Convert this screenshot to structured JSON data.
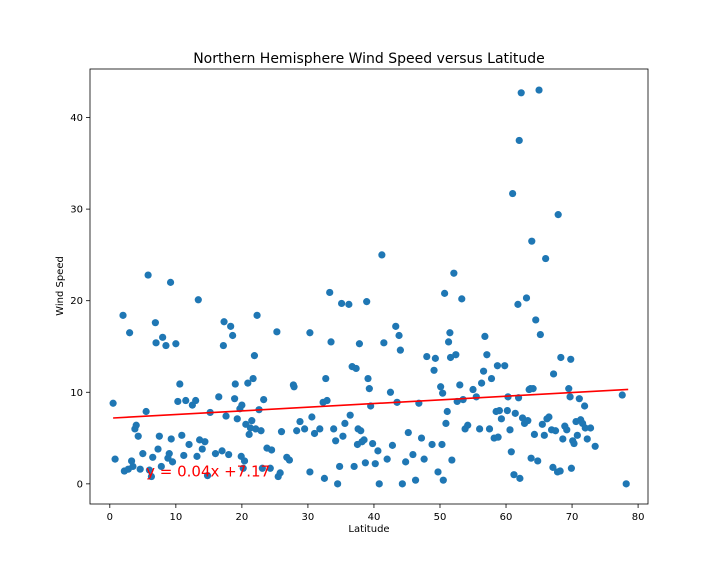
{
  "chart_data": {
    "type": "scatter",
    "title": "Northern Hemisphere Wind Speed versus Latitude",
    "xlabel": "Latitude",
    "ylabel": "Wind Speed",
    "xlim": [
      -3,
      81.5
    ],
    "ylim": [
      -2.2,
      45.3
    ],
    "xticks": [
      0,
      10,
      20,
      30,
      40,
      50,
      60,
      70,
      80
    ],
    "yticks": [
      0,
      10,
      20,
      30,
      40
    ],
    "grid": false,
    "point_color": "#1f77b4",
    "line_color": "#ff0000",
    "regression": {
      "slope": 0.04,
      "intercept": 7.17,
      "x_range": [
        0.5,
        78.5
      ]
    },
    "annotation": {
      "text": "y = 0.04x +7.17",
      "x": 5.5,
      "y": 1.0
    },
    "points": [
      [
        0.5,
        8.8
      ],
      [
        0.8,
        2.7
      ],
      [
        2.0,
        18.4
      ],
      [
        2.2,
        1.4
      ],
      [
        2.8,
        1.6
      ],
      [
        3.0,
        16.5
      ],
      [
        3.3,
        2.5
      ],
      [
        3.5,
        1.9
      ],
      [
        3.8,
        6.0
      ],
      [
        4.0,
        6.4
      ],
      [
        4.3,
        5.2
      ],
      [
        4.6,
        1.6
      ],
      [
        5.0,
        3.3
      ],
      [
        5.5,
        7.9
      ],
      [
        5.8,
        22.8
      ],
      [
        6.0,
        1.5
      ],
      [
        6.3,
        0.8
      ],
      [
        6.5,
        2.9
      ],
      [
        6.9,
        17.6
      ],
      [
        7.0,
        15.4
      ],
      [
        7.3,
        3.8
      ],
      [
        7.5,
        5.2
      ],
      [
        7.8,
        1.9
      ],
      [
        8.0,
        16.0
      ],
      [
        8.5,
        15.1
      ],
      [
        8.8,
        2.8
      ],
      [
        9.0,
        3.3
      ],
      [
        9.2,
        22.0
      ],
      [
        9.3,
        4.9
      ],
      [
        9.5,
        2.4
      ],
      [
        10.0,
        15.3
      ],
      [
        10.3,
        9.0
      ],
      [
        10.6,
        10.9
      ],
      [
        10.9,
        5.3
      ],
      [
        11.2,
        3.1
      ],
      [
        11.5,
        9.1
      ],
      [
        12.0,
        4.3
      ],
      [
        12.5,
        8.6
      ],
      [
        13.0,
        9.1
      ],
      [
        13.2,
        3.0
      ],
      [
        13.4,
        20.1
      ],
      [
        13.6,
        4.8
      ],
      [
        14.0,
        3.8
      ],
      [
        14.4,
        4.6
      ],
      [
        14.8,
        0.9
      ],
      [
        15.2,
        7.8
      ],
      [
        16.0,
        3.3
      ],
      [
        16.5,
        9.5
      ],
      [
        17.0,
        3.6
      ],
      [
        17.2,
        15.1
      ],
      [
        17.3,
        17.7
      ],
      [
        17.6,
        7.4
      ],
      [
        18.0,
        3.2
      ],
      [
        18.3,
        17.2
      ],
      [
        18.6,
        16.2
      ],
      [
        18.9,
        9.3
      ],
      [
        19.0,
        10.9
      ],
      [
        19.3,
        7.1
      ],
      [
        19.7,
        8.2
      ],
      [
        19.9,
        3.0
      ],
      [
        20.0,
        8.6
      ],
      [
        20.2,
        1.7
      ],
      [
        20.4,
        2.5
      ],
      [
        20.6,
        6.5
      ],
      [
        20.9,
        11.0
      ],
      [
        21.1,
        5.4
      ],
      [
        21.3,
        6.1
      ],
      [
        21.5,
        6.9
      ],
      [
        21.7,
        11.5
      ],
      [
        21.9,
        14.0
      ],
      [
        22.1,
        6.0
      ],
      [
        22.3,
        18.4
      ],
      [
        22.6,
        8.1
      ],
      [
        22.9,
        5.8
      ],
      [
        23.1,
        1.7
      ],
      [
        23.3,
        9.2
      ],
      [
        23.8,
        3.9
      ],
      [
        24.3,
        1.7
      ],
      [
        24.5,
        3.7
      ],
      [
        25.3,
        16.6
      ],
      [
        25.5,
        0.8
      ],
      [
        26.0,
        5.7
      ],
      [
        26.8,
        2.9
      ],
      [
        27.2,
        2.6
      ],
      [
        27.8,
        10.8
      ],
      [
        27.9,
        10.6
      ],
      [
        28.3,
        5.8
      ],
      [
        28.8,
        6.8
      ],
      [
        29.5,
        6.0
      ],
      [
        30.3,
        16.5
      ],
      [
        30.3,
        1.3
      ],
      [
        30.6,
        7.3
      ],
      [
        31.0,
        5.5
      ],
      [
        31.8,
        6.0
      ],
      [
        32.3,
        8.9
      ],
      [
        32.5,
        0.6
      ],
      [
        32.7,
        11.5
      ],
      [
        32.9,
        9.1
      ],
      [
        33.3,
        20.9
      ],
      [
        33.5,
        15.5
      ],
      [
        33.9,
        6.0
      ],
      [
        34.2,
        4.7
      ],
      [
        34.5,
        0.0
      ],
      [
        34.8,
        1.9
      ],
      [
        35.1,
        19.7
      ],
      [
        35.3,
        5.2
      ],
      [
        35.6,
        6.6
      ],
      [
        36.2,
        19.6
      ],
      [
        36.4,
        7.5
      ],
      [
        36.7,
        12.8
      ],
      [
        37.0,
        1.9
      ],
      [
        37.3,
        12.6
      ],
      [
        37.5,
        4.3
      ],
      [
        37.6,
        6.0
      ],
      [
        37.8,
        15.3
      ],
      [
        38.0,
        5.8
      ],
      [
        38.2,
        4.6
      ],
      [
        38.5,
        4.8
      ],
      [
        38.7,
        2.3
      ],
      [
        38.9,
        19.9
      ],
      [
        39.1,
        11.5
      ],
      [
        39.3,
        10.4
      ],
      [
        39.5,
        8.5
      ],
      [
        39.8,
        4.4
      ],
      [
        40.2,
        2.2
      ],
      [
        40.6,
        3.6
      ],
      [
        40.8,
        0.0
      ],
      [
        41.2,
        25.0
      ],
      [
        41.5,
        15.4
      ],
      [
        42.0,
        2.7
      ],
      [
        42.5,
        10.0
      ],
      [
        42.8,
        4.2
      ],
      [
        43.3,
        17.2
      ],
      [
        43.5,
        8.9
      ],
      [
        43.8,
        16.2
      ],
      [
        44.0,
        14.6
      ],
      [
        44.3,
        0.0
      ],
      [
        44.8,
        2.4
      ],
      [
        45.9,
        3.2
      ],
      [
        46.3,
        0.4
      ],
      [
        46.8,
        8.8
      ],
      [
        47.2,
        5.0
      ],
      [
        47.6,
        2.7
      ],
      [
        48.0,
        13.9
      ],
      [
        48.8,
        4.3
      ],
      [
        49.1,
        12.4
      ],
      [
        49.3,
        13.7
      ],
      [
        49.7,
        1.3
      ],
      [
        50.1,
        10.6
      ],
      [
        50.3,
        4.3
      ],
      [
        50.4,
        9.9
      ],
      [
        50.5,
        0.4
      ],
      [
        50.7,
        20.8
      ],
      [
        50.9,
        6.6
      ],
      [
        51.1,
        7.9
      ],
      [
        51.3,
        15.5
      ],
      [
        51.5,
        16.5
      ],
      [
        51.6,
        13.8
      ],
      [
        51.8,
        2.6
      ],
      [
        52.1,
        23.0
      ],
      [
        52.4,
        14.1
      ],
      [
        52.6,
        9.0
      ],
      [
        53.0,
        10.8
      ],
      [
        53.3,
        20.2
      ],
      [
        53.5,
        9.2
      ],
      [
        53.8,
        6.0
      ],
      [
        54.2,
        6.4
      ],
      [
        55.0,
        10.3
      ],
      [
        55.5,
        9.5
      ],
      [
        56.0,
        6.0
      ],
      [
        56.3,
        11.0
      ],
      [
        56.6,
        12.3
      ],
      [
        56.8,
        16.1
      ],
      [
        57.1,
        14.1
      ],
      [
        57.5,
        6.0
      ],
      [
        57.8,
        11.5
      ],
      [
        58.2,
        5.0
      ],
      [
        58.5,
        7.9
      ],
      [
        58.7,
        12.9
      ],
      [
        58.8,
        5.1
      ],
      [
        59.0,
        8.0
      ],
      [
        59.3,
        7.1
      ],
      [
        59.8,
        12.9
      ],
      [
        60.2,
        8.0
      ],
      [
        60.3,
        9.5
      ],
      [
        60.6,
        5.9
      ],
      [
        60.8,
        3.5
      ],
      [
        61.0,
        31.7
      ],
      [
        61.2,
        1.0
      ],
      [
        61.4,
        7.7
      ],
      [
        61.8,
        19.6
      ],
      [
        61.9,
        9.4
      ],
      [
        62.0,
        37.5
      ],
      [
        62.1,
        0.6
      ],
      [
        62.3,
        42.7
      ],
      [
        62.5,
        7.2
      ],
      [
        62.8,
        6.6
      ],
      [
        63.1,
        20.3
      ],
      [
        63.3,
        6.9
      ],
      [
        63.5,
        10.3
      ],
      [
        63.7,
        10.4
      ],
      [
        63.8,
        2.8
      ],
      [
        63.9,
        26.5
      ],
      [
        64.1,
        10.4
      ],
      [
        64.3,
        5.4
      ],
      [
        64.5,
        17.9
      ],
      [
        64.8,
        2.5
      ],
      [
        65.0,
        43.0
      ],
      [
        65.2,
        16.3
      ],
      [
        65.5,
        6.5
      ],
      [
        65.8,
        5.3
      ],
      [
        66.0,
        24.6
      ],
      [
        66.2,
        7.1
      ],
      [
        66.5,
        7.3
      ],
      [
        66.9,
        5.9
      ],
      [
        67.2,
        12.0
      ],
      [
        67.5,
        5.8
      ],
      [
        67.8,
        1.3
      ],
      [
        67.9,
        29.4
      ],
      [
        68.2,
        1.4
      ],
      [
        68.3,
        13.8
      ],
      [
        68.6,
        4.9
      ],
      [
        68.9,
        6.3
      ],
      [
        69.2,
        5.9
      ],
      [
        69.5,
        10.4
      ],
      [
        69.7,
        9.5
      ],
      [
        69.8,
        13.6
      ],
      [
        70.1,
        4.7
      ],
      [
        70.3,
        4.4
      ],
      [
        70.6,
        6.8
      ],
      [
        70.8,
        5.3
      ],
      [
        71.1,
        9.3
      ],
      [
        71.3,
        7.0
      ],
      [
        71.6,
        6.6
      ],
      [
        71.9,
        8.5
      ],
      [
        72.0,
        6.1
      ],
      [
        72.3,
        4.9
      ],
      [
        72.8,
        6.1
      ],
      [
        73.5,
        4.1
      ],
      [
        77.6,
        9.7
      ],
      [
        78.2,
        0.0
      ],
      [
        69.9,
        1.7
      ],
      [
        67.1,
        1.8
      ],
      [
        45.2,
        5.6
      ],
      [
        25.8,
        1.2
      ]
    ]
  }
}
